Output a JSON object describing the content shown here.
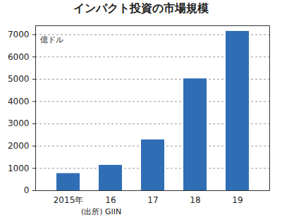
{
  "chart_data": {
    "type": "bar",
    "title": "インパクト投資の市場規模",
    "y_label": "億ドル",
    "source": "(出所) GIIN",
    "categories": [
      "2015年",
      "16",
      "17",
      "18",
      "19"
    ],
    "values": [
      770,
      1140,
      2280,
      5020,
      7150
    ],
    "color": "#2f6db5",
    "ylim": [
      0,
      7400
    ],
    "yticks": [
      0,
      1000,
      2000,
      3000,
      4000,
      5000,
      6000,
      7000
    ],
    "grid": true
  }
}
